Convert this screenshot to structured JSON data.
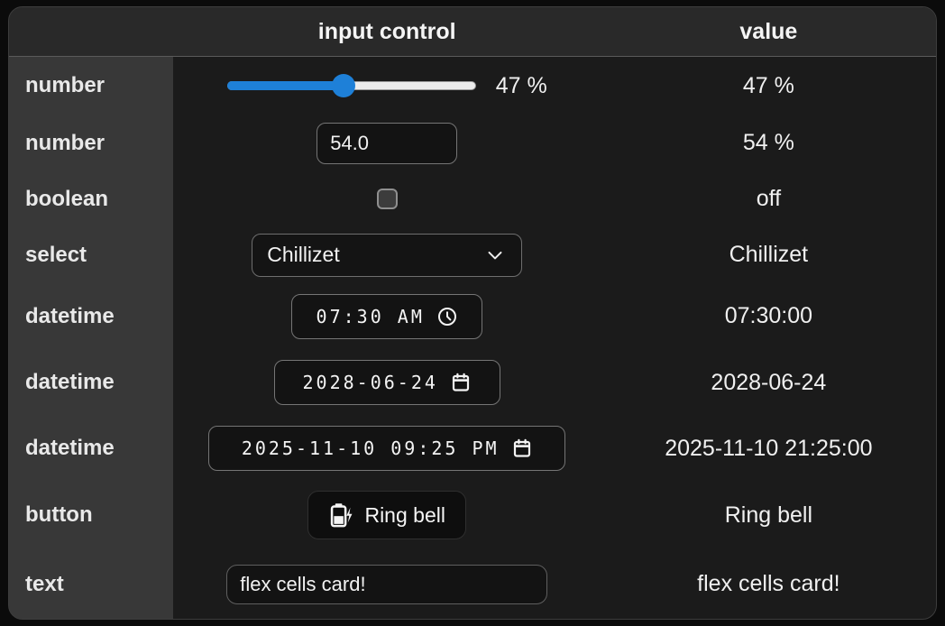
{
  "colors": {
    "accent": "#1e80d8"
  },
  "header": {
    "input_control": "input control",
    "value": "value"
  },
  "rows": [
    {
      "label": "number",
      "control": "slider",
      "percent": 47,
      "display": "47 %",
      "value": "47 %"
    },
    {
      "label": "number",
      "control": "number-input",
      "input": "54.0",
      "value": "54 %"
    },
    {
      "label": "boolean",
      "control": "checkbox",
      "state": "off",
      "value": "off"
    },
    {
      "label": "select",
      "control": "select",
      "selected": "Chillizet",
      "value": "Chillizet"
    },
    {
      "label": "datetime",
      "control": "time-input",
      "input": "07:30 AM",
      "value": "07:30:00"
    },
    {
      "label": "datetime",
      "control": "date-input",
      "input": "2028-06-24",
      "value": "2028-06-24"
    },
    {
      "label": "datetime",
      "control": "datetime-input",
      "input": "2025-11-10 09:25 PM",
      "value": "2025-11-10 21:25:00"
    },
    {
      "label": "button",
      "control": "button",
      "button_label": "Ring bell",
      "value": "Ring bell"
    },
    {
      "label": "text",
      "control": "text-input",
      "input": "flex cells card!",
      "value": "flex cells card!"
    }
  ]
}
